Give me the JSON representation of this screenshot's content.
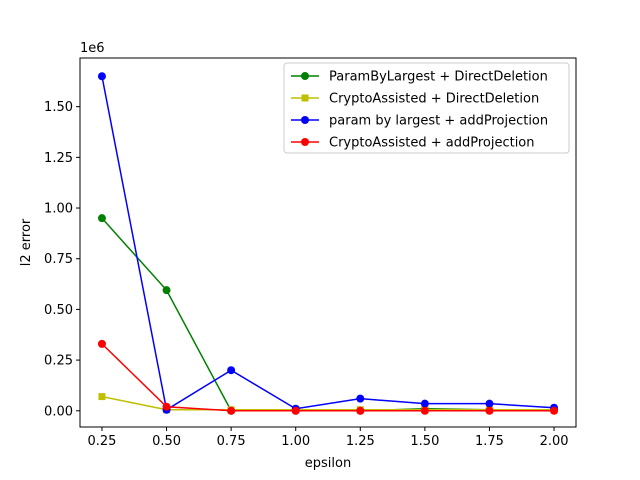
{
  "chart_data": {
    "type": "line",
    "xlabel": "epsilon",
    "ylabel": "l2 error",
    "offset_text": "1e6",
    "x": [
      0.25,
      0.5,
      0.75,
      1.0,
      1.25,
      1.5,
      1.75,
      2.0
    ],
    "xlim": [
      0.165,
      2.085
    ],
    "ylim": [
      -0.08,
      1.74
    ],
    "x_ticks": [
      0.25,
      0.5,
      0.75,
      1.0,
      1.25,
      1.5,
      1.75,
      2.0
    ],
    "x_tick_labels": [
      "0.25",
      "0.50",
      "0.75",
      "1.00",
      "1.25",
      "1.50",
      "1.75",
      "2.00"
    ],
    "y_ticks": [
      0.0,
      0.25,
      0.5,
      0.75,
      1.0,
      1.25,
      1.5
    ],
    "y_tick_labels": [
      "0.00",
      "0.25",
      "0.50",
      "0.75",
      "1.00",
      "1.25",
      "1.50"
    ],
    "grid": false,
    "legend_position": "upper right",
    "series": [
      {
        "name": "ParamByLargest + DirectDeletion",
        "color": "#008000",
        "marker": "circle",
        "values": [
          0.95,
          0.595,
          0.0,
          0.0,
          0.0,
          0.01,
          0.005,
          0.005
        ]
      },
      {
        "name": "CryptoAssisted + DirectDeletion",
        "color": "#bfbf00",
        "marker": "square",
        "values": [
          0.07,
          0.005,
          0.005,
          0.005,
          0.005,
          0.005,
          0.005,
          0.005
        ]
      },
      {
        "name": "param by largest + addProjection",
        "color": "#0000ff",
        "marker": "circle",
        "values": [
          1.65,
          0.005,
          0.2,
          0.01,
          0.06,
          0.035,
          0.035,
          0.015
        ]
      },
      {
        "name": "CryptoAssisted + addProjection",
        "color": "#ff0000",
        "marker": "circle",
        "values": [
          0.33,
          0.02,
          0.0,
          0.0,
          0.0,
          0.0,
          0.0,
          0.0
        ]
      }
    ]
  }
}
